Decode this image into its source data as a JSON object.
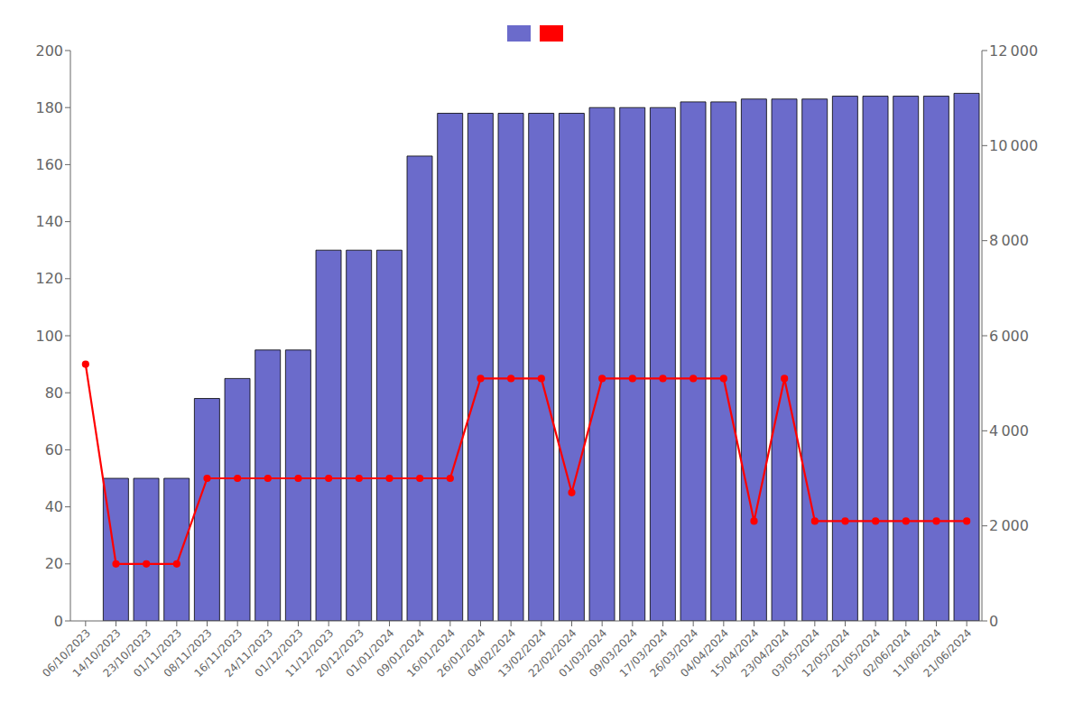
{
  "chart_data": {
    "type": "bar",
    "categories": [
      "06/10/2023",
      "14/10/2023",
      "23/10/2023",
      "01/11/2023",
      "08/11/2023",
      "16/11/2023",
      "24/11/2023",
      "01/12/2023",
      "11/12/2023",
      "20/12/2023",
      "01/01/2024",
      "09/01/2024",
      "16/01/2024",
      "26/01/2024",
      "04/02/2024",
      "13/02/2024",
      "22/02/2024",
      "01/03/2024",
      "09/03/2024",
      "17/03/2024",
      "26/03/2024",
      "04/04/2024",
      "15/04/2024",
      "23/04/2024",
      "03/05/2024",
      "12/05/2024",
      "21/05/2024",
      "02/06/2024",
      "11/06/2024",
      "21/06/2024"
    ],
    "series": [
      {
        "type": "bar",
        "color": "#6B6BCB",
        "values": [
          0,
          50,
          50,
          50,
          78,
          85,
          95,
          95,
          130,
          130,
          130,
          163,
          178,
          178,
          178,
          178,
          178,
          180,
          180,
          180,
          182,
          182,
          183,
          183,
          183,
          184,
          184,
          184,
          184,
          185
        ]
      },
      {
        "type": "line",
        "color": "#ff0000",
        "marker": "circle",
        "axis": "y2",
        "values": [
          5400,
          1200,
          1200,
          1200,
          3000,
          3000,
          3000,
          3000,
          3000,
          3000,
          3000,
          3000,
          3000,
          5100,
          5100,
          5100,
          2700,
          5100,
          5100,
          5100,
          5100,
          5100,
          2100,
          5100,
          2100,
          2100,
          2100,
          2100,
          2100,
          2100
        ]
      }
    ],
    "ylim": [
      0,
      200
    ],
    "yticks": [
      0,
      20,
      40,
      60,
      80,
      100,
      120,
      140,
      160,
      180,
      200
    ],
    "y2lim": [
      0,
      12000
    ],
    "y2ticks": [
      0,
      {
        "value": 2000,
        "label": "2 000"
      },
      {
        "value": 4000,
        "label": "4 000"
      },
      {
        "value": 6000,
        "label": "6 000"
      },
      {
        "value": 8000,
        "label": "8 000"
      },
      {
        "value": 10000,
        "label": "10 000"
      },
      {
        "value": 12000,
        "label": "12 000"
      }
    ],
    "grid": false,
    "legend": "top"
  }
}
